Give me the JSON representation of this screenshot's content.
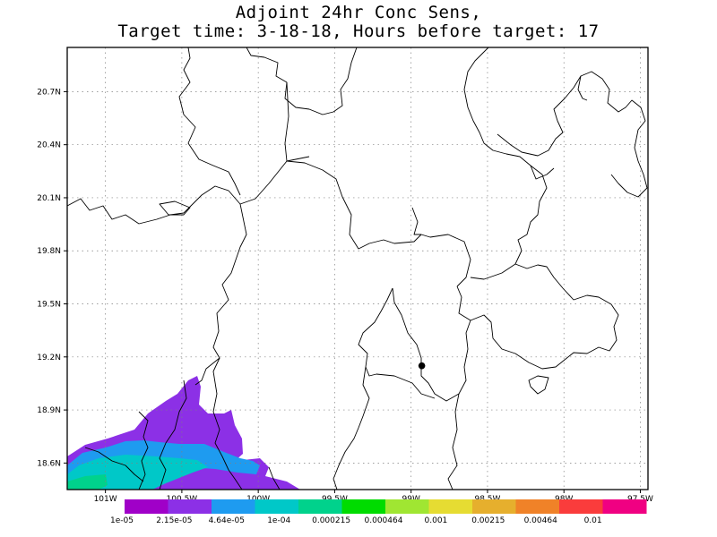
{
  "title": {
    "line1": "Adjoint 24hr Conc Sens,",
    "line2": "Target time: 3-18-18, Hours before target: 17"
  },
  "axes": {
    "lat_labels": [
      "20.7N",
      "20.4N",
      "20.1N",
      "19.8N",
      "19.5N",
      "19.2N",
      "18.9N",
      "18.6N"
    ],
    "lat_values": [
      20.7,
      20.4,
      20.1,
      19.8,
      19.5,
      19.2,
      18.9,
      18.6
    ],
    "lon_labels": [
      "101W",
      "100.5W",
      "100W",
      "99.5W",
      "99W",
      "98.5W",
      "98W",
      "97.5W"
    ],
    "lon_values": [
      -101,
      -100.5,
      -100,
      -99.5,
      -99,
      -98.5,
      -98,
      -97.5
    ],
    "lat_range": [
      18.45,
      20.95
    ],
    "lon_range": [
      -101.25,
      -97.45
    ],
    "grid": true
  },
  "target_point": {
    "lat": 19.15,
    "lon": -98.93
  },
  "colorbar": {
    "labels": [
      "1e-05",
      "2.15e-05",
      "4.64e-05",
      "1e-04",
      "0.000215",
      "0.000464",
      "0.001",
      "0.00215",
      "0.00464",
      "0.01"
    ],
    "colors": [
      "#a000c8",
      "#8c30e6",
      "#1e9bf0",
      "#00c8c8",
      "#00d28c",
      "#00dc00",
      "#a0e632",
      "#e6dc32",
      "#e6af2d",
      "#f08228",
      "#fa3c3c",
      "#f00082"
    ]
  },
  "colors": {
    "contour_lowest": "#8c30e6",
    "contour_mid": "#1e9bf0",
    "contour_high": "#00c8c8",
    "contour_highest": "#00d28c",
    "boundaries": "#000000",
    "grid": "#808080"
  }
}
